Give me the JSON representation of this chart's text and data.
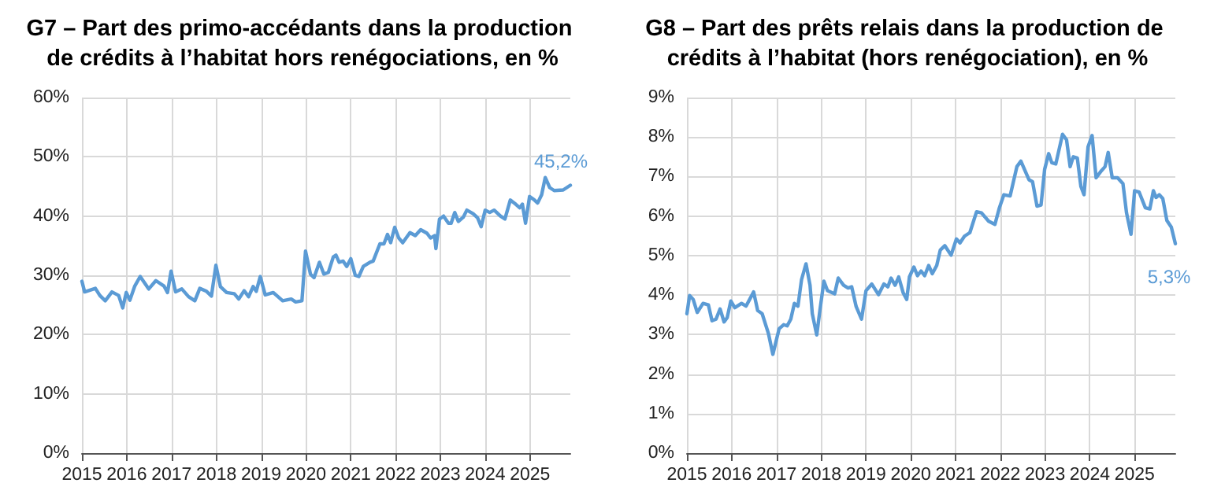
{
  "chart_data": [
    {
      "type": "line",
      "title": "G7 – Part des primo-accédants dans la production de crédits à l’habitat hors renégociations, en %",
      "grid": true,
      "marker": "none",
      "line_style": "solid",
      "xlim": [
        2015,
        2025.9
      ],
      "xticks": [
        2015,
        2016,
        2017,
        2018,
        2019,
        2020,
        2021,
        2022,
        2023,
        2024,
        2025
      ],
      "ylim": [
        0,
        60
      ],
      "yticks": [
        {
          "value": 0,
          "label": "0%"
        },
        {
          "value": 10,
          "label": "10%"
        },
        {
          "value": 20,
          "label": "20%"
        },
        {
          "value": 30,
          "label": "30%"
        },
        {
          "value": 40,
          "label": "40%"
        },
        {
          "value": 50,
          "label": "50%"
        },
        {
          "value": 60,
          "label": "60%"
        }
      ],
      "annotations": [
        {
          "text": "45,2%",
          "x": 2025.9,
          "y": 45.2
        }
      ],
      "series": [
        {
          "color": "#5b9bd5",
          "x": [
            2015.0,
            2015.06,
            2015.3,
            2015.4,
            2015.52,
            2015.67,
            2015.82,
            2015.91,
            2015.99,
            2016.07,
            2016.18,
            2016.3,
            2016.49,
            2016.65,
            2016.83,
            2016.91,
            2016.99,
            2017.09,
            2017.23,
            2017.38,
            2017.52,
            2017.63,
            2017.78,
            2017.89,
            2017.99,
            2018.09,
            2018.23,
            2018.4,
            2018.5,
            2018.62,
            2018.72,
            2018.82,
            2018.89,
            2018.98,
            2019.09,
            2019.27,
            2019.48,
            2019.67,
            2019.77,
            2019.91,
            2019.99,
            2020.1,
            2020.18,
            2020.3,
            2020.4,
            2020.5,
            2020.61,
            2020.67,
            2020.74,
            2020.83,
            2020.91,
            2021.0,
            2021.1,
            2021.18,
            2021.28,
            2021.43,
            2021.5,
            2021.65,
            2021.74,
            2021.82,
            2021.89,
            2021.98,
            2022.07,
            2022.16,
            2022.32,
            2022.44,
            2022.56,
            2022.7,
            2022.78,
            2022.87,
            2022.9,
            2022.98,
            2023.07,
            2023.18,
            2023.24,
            2023.32,
            2023.4,
            2023.51,
            2023.59,
            2023.73,
            2023.83,
            2023.91,
            2024.0,
            2024.1,
            2024.2,
            2024.34,
            2024.44,
            2024.56,
            2024.68,
            2024.77,
            2024.83,
            2024.9,
            2024.99,
            2025.1,
            2025.17,
            2025.26,
            2025.34,
            2025.44,
            2025.54,
            2025.74,
            2025.9
          ],
          "values": [
            29.0,
            27.2,
            27.8,
            26.6,
            25.7,
            27.2,
            26.6,
            24.5,
            27.1,
            25.8,
            28.2,
            29.8,
            27.7,
            29.1,
            28.2,
            27.1,
            30.7,
            27.2,
            27.7,
            26.4,
            25.7,
            27.8,
            27.3,
            26.5,
            31.7,
            28.1,
            27.1,
            26.9,
            26.0,
            27.4,
            26.4,
            28.1,
            27.3,
            29.8,
            26.7,
            27.1,
            25.7,
            26.0,
            25.5,
            25.7,
            34.1,
            30.2,
            29.6,
            32.2,
            30.2,
            30.5,
            33.1,
            33.4,
            32.2,
            32.4,
            31.5,
            32.8,
            30.0,
            29.8,
            31.5,
            32.2,
            32.4,
            35.3,
            35.3,
            36.9,
            35.5,
            38.1,
            36.3,
            35.5,
            37.2,
            36.7,
            37.7,
            37.1,
            36.3,
            36.7,
            34.5,
            39.5,
            40.0,
            38.8,
            38.8,
            40.6,
            39.1,
            39.8,
            41.0,
            40.4,
            39.7,
            38.2,
            41.0,
            40.6,
            41.0,
            40.0,
            39.5,
            42.7,
            42.0,
            41.4,
            42.0,
            38.8,
            43.3,
            42.7,
            42.2,
            43.6,
            46.5,
            44.8,
            44.3,
            44.4,
            45.2
          ]
        }
      ]
    },
    {
      "type": "line",
      "title": "G8 – Part des prêts relais dans la production de crédits à l’habitat (hors renégociation), en %",
      "grid": true,
      "marker": "none",
      "line_style": "solid",
      "xlim": [
        2015,
        2025.91
      ],
      "xticks": [
        2015,
        2016,
        2017,
        2018,
        2019,
        2020,
        2021,
        2022,
        2023,
        2024,
        2025
      ],
      "ylim": [
        0,
        9
      ],
      "yticks": [
        {
          "value": 0,
          "label": "0%"
        },
        {
          "value": 1,
          "label": "1%"
        },
        {
          "value": 2,
          "label": "2%"
        },
        {
          "value": 3,
          "label": "3%"
        },
        {
          "value": 4,
          "label": "4%"
        },
        {
          "value": 5,
          "label": "5%"
        },
        {
          "value": 6,
          "label": "6%"
        },
        {
          "value": 7,
          "label": "7%"
        },
        {
          "value": 8,
          "label": "8%"
        },
        {
          "value": 9,
          "label": "9%"
        }
      ],
      "annotations": [
        {
          "text": "5,3%",
          "x": 2025.91,
          "y": 5.3
        }
      ],
      "series": [
        {
          "color": "#5b9bd5",
          "x": [
            2015.0,
            2015.06,
            2015.14,
            2015.23,
            2015.36,
            2015.48,
            2015.56,
            2015.65,
            2015.74,
            2015.83,
            2015.9,
            2015.98,
            2016.07,
            2016.22,
            2016.32,
            2016.49,
            2016.58,
            2016.68,
            2016.82,
            2016.92,
            2017.06,
            2017.16,
            2017.24,
            2017.32,
            2017.4,
            2017.48,
            2017.56,
            2017.66,
            2017.75,
            2017.8,
            2017.9,
            2017.97,
            2018.06,
            2018.14,
            2018.3,
            2018.38,
            2018.5,
            2018.6,
            2018.68,
            2018.78,
            2018.9,
            2019.0,
            2019.13,
            2019.28,
            2019.4,
            2019.49,
            2019.56,
            2019.65,
            2019.73,
            2019.83,
            2019.91,
            2019.97,
            2020.07,
            2020.15,
            2020.23,
            2020.31,
            2020.4,
            2020.48,
            2020.58,
            2020.66,
            2020.76,
            2020.9,
            2021.02,
            2021.1,
            2021.2,
            2021.32,
            2021.47,
            2021.58,
            2021.74,
            2021.88,
            2021.98,
            2022.08,
            2022.22,
            2022.37,
            2022.46,
            2022.64,
            2022.72,
            2022.82,
            2022.91,
            2022.99,
            2023.08,
            2023.15,
            2023.24,
            2023.39,
            2023.48,
            2023.56,
            2023.63,
            2023.72,
            2023.8,
            2023.87,
            2023.96,
            2024.05,
            2024.14,
            2024.26,
            2024.34,
            2024.41,
            2024.5,
            2024.62,
            2024.74,
            2024.82,
            2024.92,
            2025.0,
            2025.1,
            2025.24,
            2025.34,
            2025.42,
            2025.48,
            2025.55,
            2025.63,
            2025.72,
            2025.82,
            2025.91
          ],
          "values": [
            3.53,
            3.99,
            3.89,
            3.56,
            3.79,
            3.75,
            3.35,
            3.39,
            3.65,
            3.32,
            3.43,
            3.85,
            3.68,
            3.79,
            3.72,
            4.08,
            3.61,
            3.53,
            3.03,
            2.5,
            3.15,
            3.25,
            3.22,
            3.39,
            3.79,
            3.72,
            4.39,
            4.79,
            4.25,
            3.53,
            2.99,
            3.61,
            4.35,
            4.11,
            4.03,
            4.43,
            4.25,
            4.18,
            4.21,
            3.71,
            3.39,
            4.11,
            4.28,
            4.01,
            4.28,
            4.21,
            4.43,
            4.25,
            4.46,
            4.06,
            3.89,
            4.46,
            4.71,
            4.49,
            4.61,
            4.49,
            4.75,
            4.54,
            4.75,
            5.14,
            5.25,
            5.01,
            5.42,
            5.32,
            5.49,
            5.58,
            6.11,
            6.08,
            5.87,
            5.79,
            6.21,
            6.54,
            6.51,
            7.25,
            7.39,
            6.92,
            6.87,
            6.25,
            6.28,
            7.18,
            7.58,
            7.35,
            7.32,
            8.07,
            7.93,
            7.25,
            7.5,
            7.47,
            6.75,
            6.54,
            7.75,
            8.04,
            6.97,
            7.15,
            7.25,
            7.61,
            6.97,
            6.97,
            6.82,
            6.08,
            5.54,
            6.64,
            6.61,
            6.21,
            6.18,
            6.64,
            6.47,
            6.54,
            6.44,
            5.89,
            5.72,
            5.3
          ]
        }
      ]
    }
  ]
}
